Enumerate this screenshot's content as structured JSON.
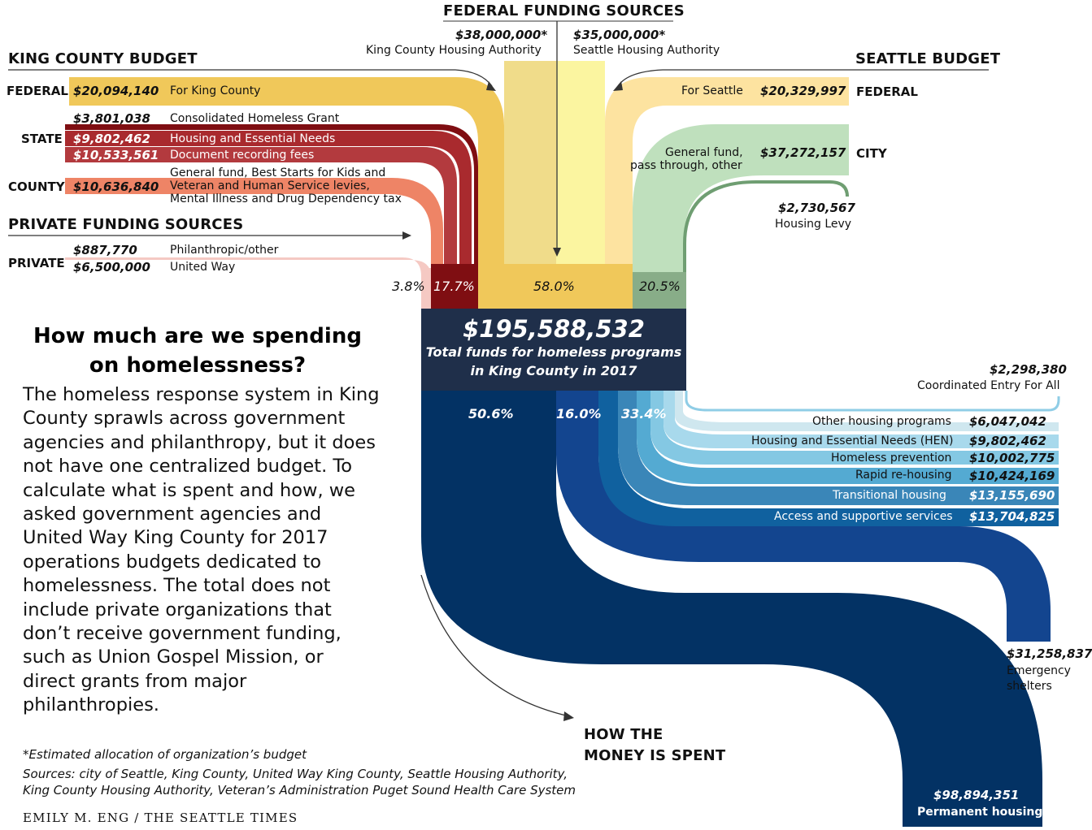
{
  "headings": {
    "federal_sources": "FEDERAL FUNDING SOURCES",
    "king_county_budget": "KING COUNTY BUDGET",
    "seattle_budget": "SEATTLE BUDGET",
    "private_sources": "PRIVATE FUNDING SOURCES",
    "how_spent": [
      "HOW THE",
      "MONEY IS SPENT"
    ]
  },
  "categories": {
    "federal_left": "FEDERAL",
    "state": "STATE",
    "county": "COUNTY",
    "private": "PRIVATE",
    "federal_right": "FEDERAL",
    "city": "CITY"
  },
  "federal_sources": [
    {
      "amount": "$38,000,000*",
      "label": "King County Housing Authority"
    },
    {
      "amount": "$35,000,000*",
      "label": "Seattle Housing Authority"
    }
  ],
  "king_county_inputs": [
    {
      "amount": "$20,094,140",
      "label": "For King County"
    },
    {
      "amount": "$3,801,038",
      "label": "Consolidated Homeless Grant"
    },
    {
      "amount": "$9,802,462",
      "label": "Housing and Essential Needs"
    },
    {
      "amount": "$10,533,561",
      "label": "Document recording fees"
    },
    {
      "amount": "$10,636,840",
      "label_lines": [
        "General fund, Best Starts for Kids and",
        "Veteran and Human Service levies,",
        "Mental Illness and Drug Dependency tax"
      ]
    }
  ],
  "private_inputs": [
    {
      "amount": "$887,770",
      "label": "Philanthropic/other"
    },
    {
      "amount": "$6,500,000",
      "label": "United Way"
    }
  ],
  "seattle_inputs": [
    {
      "amount": "$20,329,997",
      "label": "For Seattle"
    },
    {
      "amount": "$37,272,157",
      "label_lines": [
        "General fund,",
        "pass through, other"
      ]
    },
    {
      "amount": "$2,730,567",
      "label": "Housing Levy"
    }
  ],
  "input_shares": [
    "3.8%",
    "17.7%",
    "58.0%",
    "20.5%"
  ],
  "total": {
    "amount": "$195,588,532",
    "line1": "Total funds for homeless programs",
    "line2": "in King County in 2017"
  },
  "output_shares": [
    "50.6%",
    "16.0%",
    "33.4%"
  ],
  "outputs": [
    {
      "amount": "$2,298,380",
      "label": "Coordinated Entry For All"
    },
    {
      "amount": "$6,047,042",
      "label": "Other housing programs"
    },
    {
      "amount": "$9,802,462",
      "label": "Housing and Essential Needs (HEN)"
    },
    {
      "amount": "$10,002,775",
      "label": "Homeless prevention"
    },
    {
      "amount": "$10,424,169",
      "label": "Rapid re-housing"
    },
    {
      "amount": "$13,155,690",
      "label": "Transitional housing"
    },
    {
      "amount": "$13,704,825",
      "label": "Access and supportive services"
    },
    {
      "amount": "$31,258,837",
      "label_lines": [
        "Emergency",
        "shelters"
      ]
    },
    {
      "amount": "$98,894,351",
      "label": "Permanent housing"
    }
  ],
  "story": {
    "headline_lines": [
      "How much are we spending",
      "on homelessness?"
    ],
    "body": "The homeless response system in King County sprawls across government agencies and philanthropy, but it does not have one centralized budget. To calculate what is spent and how, we asked government agencies and United Way King County for 2017 operations budgets dedicated to homelessness. The total does not include private organizations that don’t receive government funding, such as Union Gospel Mission, or direct grants from major philanthropies."
  },
  "footnotes": {
    "note": "*Estimated allocation of organization’s budget",
    "sources_lines": [
      "Sources: city of Seattle, King County, United Way King County, Seattle Housing Authority,",
      "King County Housing Authority, Veteran’s Administration Puget Sound Health Care System"
    ],
    "credit": "EMILY M. ENG / THE SEATTLE TIMES"
  },
  "colors": {
    "federal_gold": "#f0c85a",
    "federal_kcha": "#f0dc8a",
    "federal_sha": "#fbf5a0",
    "seattle_fed": "#fde3a0",
    "city_green": "#bfe0bd",
    "levy_green": "#6f9e72",
    "state_dark": "#7f0e12",
    "state_red": "#a92a2e",
    "state_fees": "#b33a3e",
    "county_salmon": "#ee8466",
    "private_pink": "#f5c9c3",
    "total_box": "#1f2f4a",
    "perm_navy": "#033264",
    "shelter_blue": "#13458f"
  }
}
